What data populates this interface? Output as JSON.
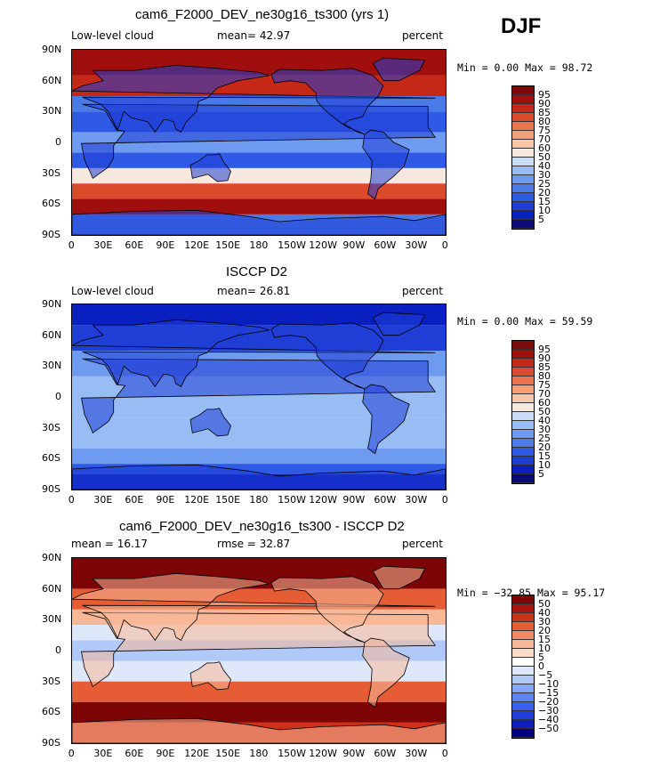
{
  "season": "DJF",
  "panels": [
    {
      "title": "cam6_F2000_DEV_ne30g16_ts300 (yrs 1)",
      "left_label": "Low-level cloud",
      "center_label": "mean=  42.97",
      "right_label": "percent",
      "stats": "Min =   0.00 Max =  98.72",
      "palette": "model",
      "colorbar_labels": [
        "95",
        "90",
        "85",
        "80",
        "75",
        "70",
        "60",
        "50",
        "40",
        "30",
        "25",
        "20",
        "15",
        "10",
        "5"
      ]
    },
    {
      "title": "ISCCP D2",
      "left_label": "Low-level cloud",
      "center_label": "mean=  26.81",
      "right_label": "percent",
      "stats": "Min =   0.00 Max =  59.59",
      "palette": "obs",
      "colorbar_labels": [
        "95",
        "90",
        "85",
        "80",
        "75",
        "70",
        "60",
        "50",
        "40",
        "30",
        "25",
        "20",
        "15",
        "10",
        "5"
      ]
    },
    {
      "title": "cam6_F2000_DEV_ne30g16_ts300 - ISCCP D2",
      "left_label": "mean =  16.17",
      "center_label": "rmse =  32.87",
      "right_label": "percent",
      "stats": "Min = −32.85 Max =  95.17",
      "palette": "diff",
      "colorbar_labels": [
        "50",
        "40",
        "30",
        "20",
        "15",
        "10",
        "5",
        "0",
        "−5",
        "−10",
        "−15",
        "−20",
        "−30",
        "−40",
        "−50"
      ]
    }
  ],
  "lat_labels": [
    "90N",
    "60N",
    "30N",
    "0",
    "30S",
    "60S",
    "90S"
  ],
  "lon_labels": [
    "0",
    "30E",
    "60E",
    "90E",
    "120E",
    "150E",
    "180",
    "150W",
    "120W",
    "90W",
    "60W",
    "30W",
    "0"
  ],
  "colors": {
    "seq_scale": [
      "#0a0a7a",
      "#0a1fbf",
      "#1f3ed6",
      "#2f5ae6",
      "#4a7ae8",
      "#6e9af0",
      "#98bdf5",
      "#c9ddf8",
      "#f6e8dc",
      "#f8c6a8",
      "#f59f7a",
      "#ec7450",
      "#dc4a2c",
      "#c52817",
      "#a10e0e",
      "#7d0a0a"
    ],
    "diff_scale": [
      "#00007f",
      "#0f1fbf",
      "#1f40df",
      "#3a60ef",
      "#5c84f2",
      "#85a7f5",
      "#b0c9f8",
      "#dfe8fb",
      "#ffffff",
      "#fbdcc8",
      "#f8b898",
      "#f28a62",
      "#e55c35",
      "#cc321a",
      "#a8140d",
      "#7d0505"
    ]
  }
}
